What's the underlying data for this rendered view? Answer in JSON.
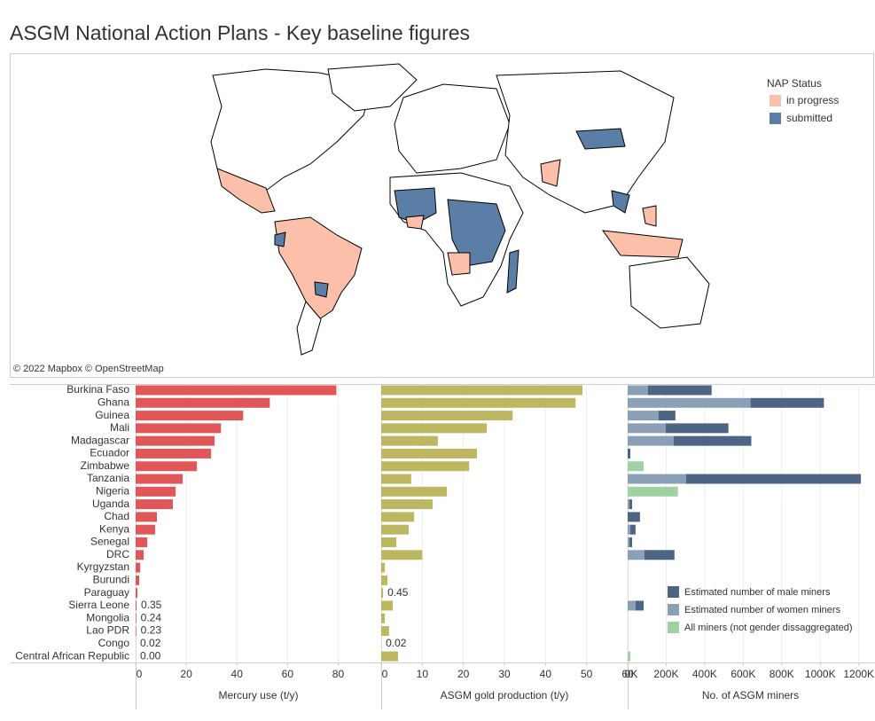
{
  "title": "ASGM National Action Plans - Key baseline figures",
  "map": {
    "legend_title": "NAP Status",
    "legend": [
      {
        "label": "in progress",
        "color": "#fbbfaa"
      },
      {
        "label": "submitted",
        "color": "#5b7ea6"
      }
    ],
    "attribution": "© 2022 Mapbox © OpenStreetMap"
  },
  "chart_data": {
    "type": "bar",
    "orientation": "horizontal",
    "categories": [
      "Burkina Faso",
      "Ghana",
      "Guinea",
      "Mali",
      "Madagascar",
      "Ecuador",
      "Zimbabwe",
      "Tanzania",
      "Nigeria",
      "Uganda",
      "Chad",
      "Kenya",
      "Senegal",
      "DRC",
      "Kyrgyzstan",
      "Burundi",
      "Paraguay",
      "Sierra Leone",
      "Mongolia",
      "Lao PDR",
      "Congo",
      "Central African Republic"
    ],
    "panels": [
      {
        "xlabel": "Mercury use (t/y)",
        "color": "#e15759",
        "xlim": [
          0,
          97
        ],
        "xticks": [
          0,
          20,
          40,
          60,
          80
        ],
        "values": [
          79.3,
          53,
          42.5,
          33.7,
          31.2,
          29.8,
          24.2,
          18.6,
          15.8,
          14.7,
          8.4,
          7.7,
          4.6,
          3.2,
          1.8,
          1.4,
          0.7,
          0.35,
          0.24,
          0.23,
          0.02,
          0
        ],
        "value_labels": [
          null,
          null,
          null,
          null,
          null,
          null,
          null,
          null,
          null,
          null,
          null,
          null,
          null,
          null,
          null,
          null,
          null,
          "0.35",
          "0.24",
          "0.23",
          "0.02",
          "0.00"
        ]
      },
      {
        "xlabel": "ASGM gold production (t/y)",
        "color": "#bdb761",
        "xlim": [
          0,
          60
        ],
        "xticks": [
          0,
          10,
          20,
          30,
          40,
          50,
          60
        ],
        "values": [
          49,
          47.3,
          32,
          25.7,
          13.8,
          23.3,
          21.4,
          7.3,
          16,
          12.5,
          8,
          6.7,
          3.7,
          10,
          0.9,
          1.5,
          0.45,
          2.8,
          0.9,
          1.9,
          0.02,
          4.1
        ],
        "value_labels": [
          null,
          null,
          null,
          null,
          null,
          null,
          null,
          null,
          null,
          null,
          null,
          null,
          null,
          null,
          null,
          null,
          "0.45",
          null,
          null,
          null,
          "0.02",
          null
        ]
      },
      {
        "xlabel": "No. of ASGM miners",
        "xlim": [
          0,
          1275000
        ],
        "stacked": true,
        "legend": "bottom-right",
        "xticks": [
          {
            "value": 0,
            "label": "0K"
          },
          {
            "value": 200000,
            "label": "200K"
          },
          {
            "value": 400000,
            "label": "400K"
          },
          {
            "value": 600000,
            "label": "600K"
          },
          {
            "value": 800000,
            "label": "800K"
          },
          {
            "value": 1000000,
            "label": "1000K"
          },
          {
            "value": 1200000,
            "label": "1200K"
          }
        ],
        "series": [
          {
            "name": "Estimated number of male miners",
            "color": "#4d6584",
            "values": [
              331000,
              381000,
              88000,
              326000,
              404000,
              14000,
              null,
              908000,
              null,
              14000,
              64000,
              27000,
              14000,
              156000,
              null,
              null,
              null,
              42000,
              null,
              null,
              null,
              null
            ]
          },
          {
            "name": "Estimated number of women miners",
            "color": "#8aa0b6",
            "values": [
              105000,
              638000,
              160000,
              197000,
              238000,
              null,
              null,
              303000,
              null,
              9000,
              null,
              14000,
              9000,
              87000,
              null,
              null,
              null,
              41000,
              null,
              null,
              null,
              null
            ]
          },
          {
            "name": "All miners (not gender dissaggregated)",
            "color": "#9fd1a3",
            "values": [
              null,
              null,
              null,
              null,
              null,
              null,
              83000,
              null,
              261000,
              null,
              null,
              null,
              null,
              null,
              null,
              null,
              null,
              null,
              null,
              null,
              null,
              14000
            ]
          }
        ]
      }
    ]
  }
}
